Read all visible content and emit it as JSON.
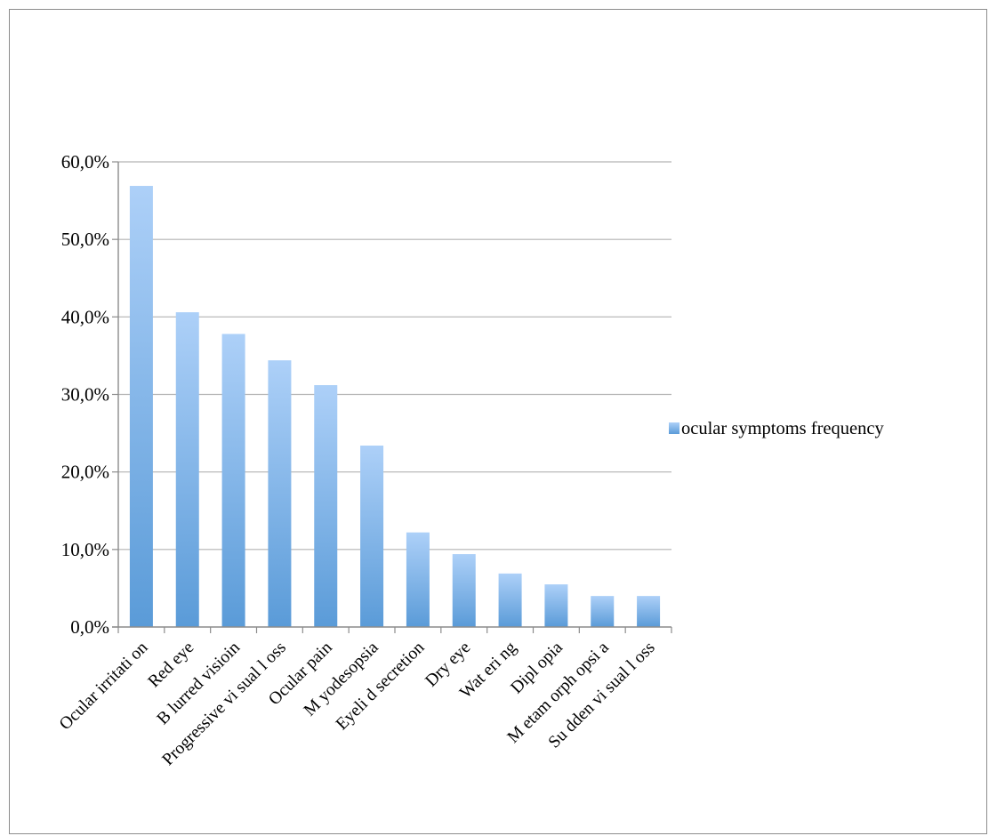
{
  "chart_data": {
    "type": "bar",
    "categories": [
      "Ocular irritati on",
      "Red eye",
      "B lurred visioin",
      "Progressive vi sual l oss",
      "Ocular pain",
      "M yodesopsia",
      "Eyeli d secretion",
      "Dry eye",
      "Wat eri ng",
      "Dipl opia",
      "M etam orph opsi a",
      "Su dden vi sual l oss"
    ],
    "series": [
      {
        "name": "ocular symptoms frequency",
        "values": [
          56.9,
          40.6,
          37.8,
          34.4,
          31.2,
          23.4,
          12.2,
          9.4,
          6.9,
          5.5,
          4.0,
          4.0
        ]
      }
    ],
    "y_ticks": [
      "0,0%",
      "10,0%",
      "20,0%",
      "30,0%",
      "40,0%",
      "50,0%",
      "60,0%"
    ],
    "ylim": [
      0,
      60
    ],
    "y_unit": "percent",
    "grid": true,
    "legend_position": "right",
    "colors": {
      "bar_top": "#add0f8",
      "bar_bottom": "#5a9bd8",
      "grid": "#b3b3b3",
      "axis": "#8c8c8c"
    }
  }
}
